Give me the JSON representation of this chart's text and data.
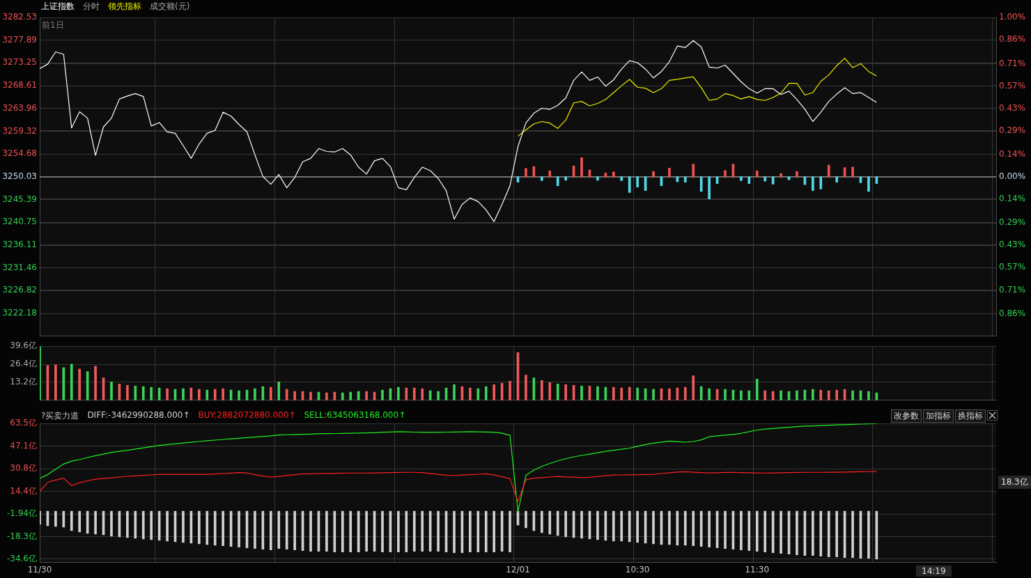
{
  "chart_data": [
    {
      "type": "line",
      "legend": "top left",
      "grid": true,
      "tick_labels": "y",
      "annotations": [
        "分时",
        "成交额(元)",
        "前1日"
      ],
      "categories": [
        null,
        null,
        null,
        null,
        null,
        null,
        null,
        null,
        null,
        null,
        null,
        null,
        null,
        null,
        null,
        null,
        null,
        null,
        null,
        null,
        null,
        null,
        null,
        null,
        null,
        null,
        null,
        null,
        null,
        null,
        null,
        null,
        null,
        null,
        null,
        null,
        null,
        null,
        null,
        null,
        null,
        null,
        null,
        null,
        null,
        null,
        null,
        null,
        null,
        null,
        null,
        null,
        null,
        null,
        null,
        null,
        null,
        null,
        null,
        null,
        null,
        null,
        null,
        null,
        null,
        null,
        null,
        null,
        null,
        null,
        null,
        null,
        null,
        null,
        null,
        null,
        null,
        null,
        null,
        null,
        null,
        null,
        null,
        null,
        null,
        null,
        null,
        null,
        null,
        null,
        null,
        null,
        null,
        null,
        null,
        null,
        null,
        null,
        null,
        null,
        null,
        null,
        null,
        null,
        null,
        null,
        null,
        null,
        null,
        null,
        null,
        null,
        null,
        null,
        null,
        null,
        null,
        null,
        null,
        null,
        null
      ],
      "ylim": [
        3217.53,
        3282.53
      ],
      "yticks": [
        3282.53,
        3277.89,
        3273.25,
        3268.61,
        3263.96,
        3259.32,
        3254.68,
        3250.03,
        3245.39,
        3240.75,
        3236.11,
        3231.46,
        3226.82,
        3222.18
      ],
      "y2lim": [
        -1.0,
        1.0
      ],
      "y2ticks": [
        {
          "value": 1.0,
          "label": "1.00%"
        },
        {
          "value": 0.86,
          "label": "0.86%"
        },
        {
          "value": 0.71,
          "label": "0.71%"
        },
        {
          "value": 0.57,
          "label": "0.57%"
        },
        {
          "value": 0.43,
          "label": "0.43%"
        },
        {
          "value": 0.29,
          "label": "0.29%"
        },
        {
          "value": 0.14,
          "label": "0.14%"
        },
        {
          "value": 0,
          "label": "0.00%"
        },
        {
          "value": -0.14,
          "label": "0.14%"
        },
        {
          "value": -0.29,
          "label": "0.29%"
        },
        {
          "value": -0.43,
          "label": "0.43%"
        },
        {
          "value": -0.57,
          "label": "0.57%"
        },
        {
          "value": -0.71,
          "label": "0.71%"
        },
        {
          "value": -0.86,
          "label": "0.86%"
        }
      ],
      "ref_lines": [
        {
          "axis": "y",
          "value": 3250.03,
          "color": "#8a8a8a"
        }
      ],
      "series": [
        {
          "name": "上证指数",
          "color": "#ffffff",
          "values": [
            3272.1,
            3273.0,
            3275.5,
            3275.0,
            3260.0,
            3263.3,
            3262.0,
            3254.4,
            3260.2,
            3262.0,
            3265.9,
            3266.5,
            3267.0,
            3266.4,
            3260.4,
            3261.1,
            3259.2,
            3258.9,
            3256.4,
            3253.8,
            3256.7,
            3258.9,
            3259.5,
            3263.2,
            3262.4,
            3260.7,
            3259.2,
            3254.5,
            3250.1,
            3248.5,
            3250.5,
            3247.8,
            3249.9,
            3253.1,
            3253.8,
            3255.8,
            3255.2,
            3255.1,
            3255.8,
            3254.5,
            3252.0,
            3250.6,
            3253.3,
            3253.8,
            3252.1,
            3247.8,
            3247.4,
            3249.9,
            3252.0,
            3251.3,
            3249.7,
            3247.2,
            3241.4,
            3244.4,
            3245.7,
            3245.0,
            3243.3,
            3240.9,
            3244.4,
            3248.2,
            3256.2,
            3261.0,
            3263.0,
            3264.0,
            3263.8,
            3264.6,
            3266.1,
            3269.7,
            3271.4,
            3269.7,
            3270.4,
            3268.5,
            3269.8,
            3272.0,
            3273.7,
            3273.3,
            3272.0,
            3270.2,
            3271.5,
            3273.5,
            3276.7,
            3276.4,
            3277.8,
            3276.5,
            3272.4,
            3272.2,
            3272.8,
            3271.1,
            3269.4,
            3268.0,
            3267.1,
            3268.0,
            3268.0,
            3266.8,
            3267.5,
            3265.8,
            3263.8,
            3261.3,
            3263.2,
            3265.4,
            3266.9,
            3268.2,
            3267.0,
            3267.2,
            3266.2,
            3265.2,
            null,
            null,
            null,
            null,
            null,
            null,
            null,
            null,
            null,
            null,
            null,
            null,
            null,
            null,
            null
          ]
        },
        {
          "name": "领先指标",
          "color": "#f0f000",
          "values": [
            null,
            null,
            null,
            null,
            null,
            null,
            null,
            null,
            null,
            null,
            null,
            null,
            null,
            null,
            null,
            null,
            null,
            null,
            null,
            null,
            null,
            null,
            null,
            null,
            null,
            null,
            null,
            null,
            null,
            null,
            null,
            null,
            null,
            null,
            null,
            null,
            null,
            null,
            null,
            null,
            null,
            null,
            null,
            null,
            null,
            null,
            null,
            null,
            null,
            null,
            null,
            null,
            null,
            null,
            null,
            null,
            null,
            null,
            null,
            null,
            3258.3,
            3259.6,
            3260.8,
            3261.3,
            3261.0,
            3259.9,
            3261.6,
            3265.1,
            3265.4,
            3264.5,
            3265.0,
            3265.8,
            3267.2,
            3268.6,
            3269.9,
            3268.3,
            3268.1,
            3267.2,
            3268.0,
            3269.7,
            3269.9,
            3270.2,
            3270.4,
            3268.2,
            3265.6,
            3265.9,
            3267.0,
            3266.6,
            3265.9,
            3266.4,
            3265.8,
            3265.6,
            3266.2,
            3267.1,
            3269.1,
            3269.1,
            3266.7,
            3267.2,
            3269.5,
            3270.8,
            3272.7,
            3274.2,
            3272.3,
            3273.1,
            3271.5,
            3270.6,
            null,
            null,
            null,
            null,
            null,
            null,
            null,
            null,
            null,
            null,
            null,
            null,
            null,
            null,
            null
          ]
        },
        {
          "type": "bar",
          "base": [
            null,
            null,
            null,
            null,
            null,
            null,
            null,
            null,
            null,
            null,
            null,
            null,
            null,
            null,
            null,
            null,
            null,
            null,
            null,
            null,
            null,
            null,
            null,
            null,
            null,
            null,
            null,
            null,
            null,
            null,
            null,
            null,
            null,
            null,
            null,
            null,
            null,
            null,
            null,
            null,
            null,
            null,
            null,
            null,
            null,
            null,
            null,
            null,
            null,
            null,
            null,
            null,
            null,
            null,
            null,
            null,
            null,
            null,
            null,
            null,
            3250.03,
            3250.03,
            3250.03,
            3250.03,
            3250.03,
            3250.03,
            3250.03,
            3250.03,
            3250.03,
            3250.03,
            3250.03,
            3250.03,
            3250.03,
            3250.03,
            3250.03,
            3250.03,
            3250.03,
            3250.03,
            3250.03,
            3250.03,
            3250.03,
            3250.03,
            3250.03,
            3250.03,
            3250.03,
            3250.03,
            3250.03,
            3250.03,
            3250.03,
            3250.03,
            3250.03,
            3250.03,
            3250.03,
            3250.03,
            3250.03,
            3250.03,
            3250.03,
            3250.03,
            3250.03,
            3250.03,
            3250.03,
            3250.03,
            3250.03,
            3250.03,
            3250.03,
            3250.03,
            null,
            null,
            null,
            null,
            null,
            null,
            null,
            null,
            null,
            null,
            null,
            null,
            null,
            null,
            null
          ],
          "values": [
            null,
            null,
            null,
            null,
            null,
            null,
            null,
            null,
            null,
            null,
            null,
            null,
            null,
            null,
            null,
            null,
            null,
            null,
            null,
            null,
            null,
            null,
            null,
            null,
            null,
            null,
            null,
            null,
            null,
            null,
            null,
            null,
            null,
            null,
            null,
            null,
            null,
            null,
            null,
            null,
            null,
            null,
            null,
            null,
            null,
            null,
            null,
            null,
            null,
            null,
            null,
            null,
            null,
            null,
            null,
            null,
            null,
            null,
            null,
            null,
            -1.1,
            1.7,
            2.1,
            -0.8,
            1.2,
            -1.8,
            -0.7,
            2.2,
            3.9,
            1.4,
            -0.7,
            0.8,
            1.0,
            -0.8,
            -3.2,
            -2.1,
            -2.8,
            1.1,
            -1.8,
            1.8,
            -1.0,
            -1.1,
            2.6,
            -3.0,
            -4.5,
            -1.4,
            1.3,
            2.6,
            -0.8,
            -1.4,
            1.2,
            -0.9,
            -1.5,
            0.7,
            -0.6,
            1.1,
            -1.6,
            -2.8,
            -2.5,
            2.4,
            -1.1,
            1.9,
            2.0,
            -1.2,
            -3.0,
            -1.4,
            null,
            null,
            null,
            null,
            null,
            null,
            null,
            null,
            null,
            null,
            null,
            null,
            null,
            null,
            null
          ],
          "colors": [
            null,
            null,
            null,
            null,
            null,
            null,
            null,
            null,
            null,
            null,
            null,
            null,
            null,
            null,
            null,
            null,
            null,
            null,
            null,
            null,
            null,
            null,
            null,
            null,
            null,
            null,
            null,
            null,
            null,
            null,
            null,
            null,
            null,
            null,
            null,
            null,
            null,
            null,
            null,
            null,
            null,
            null,
            null,
            null,
            null,
            null,
            null,
            null,
            null,
            null,
            null,
            null,
            null,
            null,
            null,
            null,
            null,
            null,
            null,
            null,
            "#50d8e8",
            "#f05050",
            "#f05050",
            "#50d8e8",
            "#f05050",
            "#50d8e8",
            "#50d8e8",
            "#f05050",
            "#f05050",
            "#f05050",
            "#50d8e8",
            "#f05050",
            "#f05050",
            "#50d8e8",
            "#50d8e8",
            "#50d8e8",
            "#50d8e8",
            "#f05050",
            "#50d8e8",
            "#f05050",
            "#50d8e8",
            "#50d8e8",
            "#f05050",
            "#50d8e8",
            "#50d8e8",
            "#50d8e8",
            "#f05050",
            "#f05050",
            "#50d8e8",
            "#50d8e8",
            "#f05050",
            "#50d8e8",
            "#50d8e8",
            "#f05050",
            "#50d8e8",
            "#f05050",
            "#50d8e8",
            "#50d8e8",
            "#50d8e8",
            "#f05050",
            "#50d8e8",
            "#f05050",
            "#f05050",
            "#50d8e8",
            "#50d8e8",
            "#50d8e8",
            null,
            null,
            null,
            null,
            null,
            null,
            null,
            null,
            null,
            null,
            null,
            null,
            null,
            null,
            null
          ]
        }
      ]
    },
    {
      "type": "bar",
      "grid": true,
      "tick_labels": "y",
      "categories": [
        null,
        null,
        null,
        null,
        null,
        null,
        null,
        null,
        null,
        null,
        null,
        null,
        null,
        null,
        null,
        null,
        null,
        null,
        null,
        null,
        null,
        null,
        null,
        null,
        null,
        null,
        null,
        null,
        null,
        null,
        null,
        null,
        null,
        null,
        null,
        null,
        null,
        null,
        null,
        null,
        null,
        null,
        null,
        null,
        null,
        null,
        null,
        null,
        null,
        null,
        null,
        null,
        null,
        null,
        null,
        null,
        null,
        null,
        null,
        null,
        null,
        null,
        null,
        null,
        null,
        null,
        null,
        null,
        null,
        null,
        null,
        null,
        null,
        null,
        null,
        null,
        null,
        null,
        null,
        null,
        null,
        null,
        null,
        null,
        null,
        null,
        null,
        null,
        null,
        null,
        null,
        null,
        null,
        null,
        null,
        null,
        null,
        null,
        null,
        null,
        null,
        null,
        null,
        null,
        null,
        null,
        null,
        null,
        null,
        null,
        null,
        null,
        null,
        null,
        null,
        null,
        null,
        null,
        null,
        null,
        null
      ],
      "ylim": [
        0,
        39.6
      ],
      "yticks": [
        {
          "value": 13.2,
          "label": "13.2亿"
        },
        {
          "value": 26.4,
          "label": "26.4亿"
        },
        {
          "value": 39.6,
          "label": "39.6亿"
        }
      ],
      "series": [
        {
          "values": [
            39.6,
            25.5,
            26.0,
            24.0,
            26.5,
            23.0,
            21.0,
            25.0,
            16.5,
            13.5,
            12.0,
            11.0,
            10.5,
            10.0,
            9.5,
            9.0,
            8.5,
            8.0,
            8.5,
            9.0,
            8.0,
            7.5,
            8.0,
            8.5,
            7.5,
            7.0,
            7.5,
            8.5,
            10.0,
            9.5,
            13.5,
            8.0,
            6.5,
            6.5,
            6.0,
            6.0,
            5.5,
            6.0,
            5.5,
            6.0,
            6.5,
            6.5,
            6.0,
            7.5,
            8.5,
            9.5,
            9.0,
            9.0,
            8.5,
            7.0,
            6.5,
            9.0,
            11.5,
            10.0,
            9.0,
            8.5,
            10.0,
            11.5,
            12.5,
            14.0,
            35.0,
            18.5,
            16.5,
            14.5,
            13.0,
            12.0,
            11.5,
            11.0,
            10.5,
            10.5,
            10.0,
            9.5,
            9.5,
            9.0,
            9.5,
            9.0,
            8.5,
            8.0,
            8.5,
            8.5,
            9.0,
            9.5,
            18.0,
            10.0,
            8.5,
            8.0,
            8.0,
            7.5,
            7.0,
            7.0,
            15.5,
            7.0,
            6.5,
            7.0,
            6.5,
            7.0,
            7.5,
            8.0,
            7.5,
            7.0,
            7.5,
            8.0,
            7.0,
            7.0,
            6.5,
            5.5,
            null,
            null,
            null,
            null,
            null,
            null,
            null,
            null,
            null,
            null,
            null,
            null,
            null,
            null,
            null
          ],
          "colors": [
            "#3cd25a",
            "#f05a5a",
            "#f05a5a",
            "#3cd25a",
            "#3cd25a",
            "#f05a5a",
            "#3cd25a",
            "#f05a5a",
            "#f05a5a",
            "#3cd25a",
            "#f05a5a",
            "#f05a5a",
            "#3cd25a",
            "#3cd25a",
            "#3cd25a",
            "#3cd25a",
            "#f05a5a",
            "#3cd25a",
            "#3cd25a",
            "#f05a5a",
            "#f05a5a",
            "#3cd25a",
            "#f05a5a",
            "#f05a5a",
            "#3cd25a",
            "#3cd25a",
            "#3cd25a",
            "#3cd25a",
            "#3cd25a",
            "#f05a5a",
            "#3cd25a",
            "#f05a5a",
            "#f05a5a",
            "#f05a5a",
            "#f05a5a",
            "#3cd25a",
            "#f05a5a",
            "#f05a5a",
            "#3cd25a",
            "#3cd25a",
            "#3cd25a",
            "#f05a5a",
            "#f05a5a",
            "#3cd25a",
            "#3cd25a",
            "#3cd25a",
            "#f05a5a",
            "#f05a5a",
            "#f05a5a",
            "#3cd25a",
            "#3cd25a",
            "#3cd25a",
            "#3cd25a",
            "#f05a5a",
            "#f05a5a",
            "#3cd25a",
            "#3cd25a",
            "#f05a5a",
            "#f05a5a",
            "#f05a5a",
            "#f05a5a",
            "#f05a5a",
            "#3cd25a",
            "#f05a5a",
            "#f05a5a",
            "#3cd25a",
            "#f05a5a",
            "#f05a5a",
            "#3cd25a",
            "#f05a5a",
            "#3cd25a",
            "#3cd25a",
            "#f05a5a",
            "#f05a5a",
            "#f05a5a",
            "#3cd25a",
            "#3cd25a",
            "#3cd25a",
            "#f05a5a",
            "#f05a5a",
            "#f05a5a",
            "#f05a5a",
            "#f05a5a",
            "#3cd25a",
            "#3cd25a",
            "#f05a5a",
            "#3cd25a",
            "#3cd25a",
            "#3cd25a",
            "#3cd25a",
            "#3cd25a",
            "#f05a5a",
            "#f05a5a",
            "#3cd25a",
            "#3cd25a",
            "#3cd25a",
            "#3cd25a",
            "#3cd25a",
            "#f05a5a",
            "#f05a5a",
            "#f05a5a",
            "#f05a5a",
            "#3cd25a",
            "#3cd25a",
            "#3cd25a",
            "#3cd25a",
            null,
            null,
            null,
            null,
            null,
            null,
            null,
            null,
            null,
            null,
            null,
            null,
            null,
            null,
            null
          ]
        }
      ]
    },
    {
      "type": "line",
      "title": "?买卖力道",
      "legend": "top left",
      "grid": true,
      "annotations": [
        "改参数",
        "加指标",
        "换指标",
        "18.3亿",
        "14:19"
      ],
      "categories": [
        "11/30",
        null,
        null,
        null,
        null,
        null,
        null,
        null,
        null,
        null,
        null,
        null,
        null,
        null,
        null,
        null,
        null,
        null,
        null,
        null,
        null,
        null,
        null,
        null,
        null,
        null,
        null,
        null,
        null,
        null,
        null,
        null,
        null,
        null,
        null,
        null,
        null,
        null,
        null,
        null,
        null,
        null,
        null,
        null,
        null,
        null,
        null,
        null,
        null,
        null,
        null,
        null,
        null,
        null,
        null,
        null,
        null,
        null,
        null,
        null,
        "12/01",
        null,
        null,
        null,
        null,
        null,
        null,
        null,
        null,
        null,
        null,
        null,
        null,
        null,
        null,
        "10:30",
        null,
        null,
        null,
        null,
        null,
        null,
        null,
        null,
        null,
        null,
        null,
        null,
        null,
        null,
        "11:30",
        null,
        null,
        null,
        null,
        null,
        null,
        null,
        null,
        null,
        null,
        null,
        null,
        null,
        null,
        null,
        null,
        null,
        null,
        null,
        null,
        null,
        null,
        null,
        null,
        null,
        null,
        null,
        null,
        null,
        null
      ],
      "ylim": [
        -37,
        63.5
      ],
      "yticks": [
        {
          "value": 63.5,
          "label": "63.5亿"
        },
        {
          "value": 47.1,
          "label": "47.1亿"
        },
        {
          "value": 30.8,
          "label": "30.8亿"
        },
        {
          "value": 14.4,
          "label": "14.4亿"
        },
        {
          "value": -1.94,
          "label": "-1.94亿"
        },
        {
          "value": -18.3,
          "label": "-18.3亿"
        },
        {
          "value": -34.6,
          "label": "-34.6亿"
        }
      ],
      "series": [
        {
          "name": "DIFF:-3462990288.000↑",
          "type": "bar",
          "color": "#d0d0d0",
          "values": [
            -9.5,
            -10.5,
            -11.0,
            -11.5,
            -14.0,
            -15.0,
            -16.0,
            -16.5,
            -17.0,
            -18.0,
            -18.5,
            -19.0,
            -19.5,
            -20.0,
            -20.5,
            -21.0,
            -21.5,
            -22.0,
            -22.5,
            -23.0,
            -23.5,
            -24.0,
            -24.5,
            -25.0,
            -25.5,
            -26.0,
            -26.5,
            -27.0,
            -27.5,
            -28.0,
            -27.0,
            -27.5,
            -28.0,
            -28.5,
            -29.0,
            -29.0,
            -29.0,
            -29.5,
            -29.5,
            -29.5,
            -29.5,
            -29.0,
            -29.0,
            -29.5,
            -29.5,
            -29.5,
            -29.5,
            -29.0,
            -29.0,
            -29.0,
            -29.0,
            -29.5,
            -30.0,
            -30.0,
            -29.5,
            -29.5,
            -29.5,
            -29.5,
            -29.0,
            -29.5,
            -10.0,
            -12.0,
            -14.0,
            -15.5,
            -16.5,
            -17.5,
            -18.5,
            -19.0,
            -19.5,
            -20.0,
            -20.5,
            -21.0,
            -21.5,
            -21.5,
            -22.0,
            -22.5,
            -23.0,
            -23.5,
            -24.0,
            -24.0,
            -24.5,
            -24.5,
            -25.0,
            -25.5,
            -26.0,
            -26.5,
            -27.0,
            -27.5,
            -28.0,
            -28.5,
            -29.0,
            -29.5,
            -30.0,
            -30.5,
            -31.0,
            -31.5,
            -32.0,
            -32.0,
            -32.5,
            -33.0,
            -33.0,
            -33.5,
            -33.5,
            -34.0,
            -34.0,
            -34.6,
            null,
            null,
            null,
            null,
            null,
            null,
            null,
            null,
            null,
            null,
            null,
            null,
            null,
            null,
            null
          ]
        },
        {
          "name": "BUY:2882072880.000↑",
          "color": "#ff2020",
          "values": [
            14.4,
            21.0,
            22.6,
            24.0,
            18.5,
            20.7,
            22.0,
            23.2,
            23.7,
            24.2,
            24.8,
            25.3,
            25.6,
            26.0,
            26.3,
            26.7,
            26.7,
            26.7,
            26.7,
            26.7,
            26.7,
            26.7,
            27.0,
            27.3,
            27.6,
            28.0,
            27.8,
            26.5,
            25.5,
            24.8,
            25.2,
            25.9,
            26.5,
            27.0,
            27.1,
            27.3,
            27.4,
            27.5,
            27.6,
            27.7,
            27.7,
            27.7,
            27.8,
            27.9,
            28.0,
            28.1,
            28.2,
            28.2,
            28.0,
            27.4,
            26.7,
            26.1,
            25.8,
            26.2,
            26.5,
            26.8,
            27.1,
            26.2,
            25.0,
            23.6,
            7.1,
            22.8,
            24.0,
            24.4,
            24.8,
            25.2,
            24.9,
            24.7,
            24.4,
            24.6,
            25.2,
            25.7,
            26.2,
            26.3,
            26.4,
            26.5,
            26.6,
            26.7,
            27.3,
            27.9,
            28.4,
            28.6,
            28.3,
            28.0,
            27.8,
            27.9,
            28.1,
            28.2,
            28.0,
            27.9,
            27.8,
            27.7,
            27.8,
            27.9,
            28.0,
            28.1,
            28.2,
            28.2,
            28.2,
            28.3,
            28.3,
            28.4,
            28.5,
            28.6,
            28.7,
            28.8,
            null,
            null,
            null,
            null,
            null,
            null,
            null,
            null,
            null,
            null,
            null,
            null,
            null,
            null,
            null
          ]
        },
        {
          "name": "SELL:6345063168.000↑",
          "color": "#20f020",
          "values": [
            23.8,
            26.5,
            30.5,
            34.2,
            36.3,
            37.4,
            38.9,
            40.2,
            41.4,
            42.6,
            43.4,
            44.1,
            45.0,
            45.9,
            46.8,
            47.7,
            48.3,
            48.8,
            49.4,
            49.9,
            50.5,
            51.1,
            51.5,
            52.0,
            52.4,
            52.8,
            53.3,
            53.7,
            54.1,
            54.6,
            55.2,
            55.4,
            55.5,
            55.7,
            55.9,
            56.1,
            56.2,
            56.3,
            56.4,
            56.5,
            56.6,
            56.7,
            56.9,
            57.2,
            57.4,
            57.6,
            57.5,
            57.3,
            57.2,
            57.1,
            57.2,
            57.3,
            57.4,
            57.5,
            57.6,
            57.5,
            57.4,
            57.2,
            56.5,
            55.0,
            -0.3,
            26.0,
            29.8,
            32.5,
            34.6,
            36.5,
            38.0,
            39.4,
            40.4,
            41.4,
            42.4,
            43.4,
            44.1,
            44.9,
            45.7,
            47.0,
            48.3,
            49.3,
            50.1,
            50.8,
            50.4,
            50.0,
            50.5,
            51.7,
            54.0,
            54.6,
            55.1,
            55.6,
            56.4,
            57.6,
            58.8,
            59.5,
            59.9,
            60.4,
            60.8,
            61.3,
            61.6,
            61.8,
            62.0,
            62.3,
            62.5,
            62.7,
            62.9,
            63.1,
            63.3,
            63.5,
            null,
            null,
            null,
            null,
            null,
            null,
            null,
            null,
            null,
            null,
            null,
            null,
            null,
            null,
            null
          ]
        }
      ]
    }
  ]
}
